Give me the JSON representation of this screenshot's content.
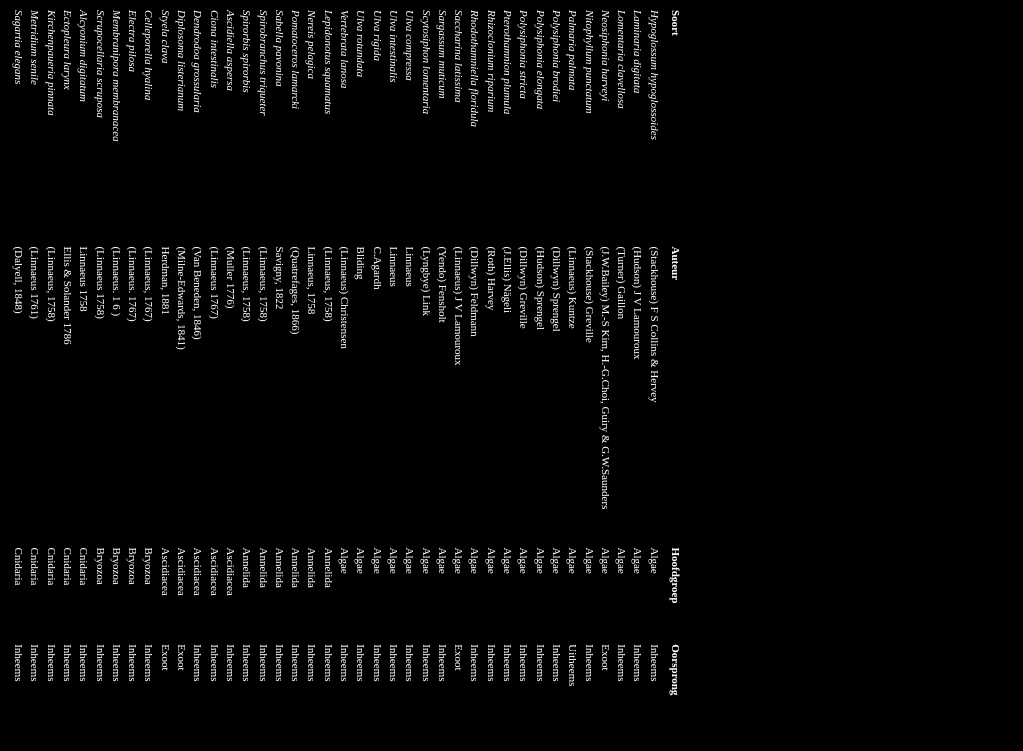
{
  "headers": {
    "soort": "Soort",
    "auteur": "Auteur",
    "hoofdgroep": "Hoofdgroep",
    "oorsprong": "Oorsprong"
  },
  "rows": [
    {
      "soort": "Hypoglossum hypoglossoides",
      "auteur": "(Stackhouse) F S Collins & Hervey",
      "hoofdgroep": "Algae",
      "oorsprong": "Inheems"
    },
    {
      "soort": "Laminaria digitata",
      "auteur": "(Hudson) J V Lamouroux",
      "hoofdgroep": "Algae",
      "oorsprong": "Inheems"
    },
    {
      "soort": "Lomentaria clavellosa",
      "auteur": "(Turner) Gaillon",
      "hoofdgroep": "Algae",
      "oorsprong": "Inheems"
    },
    {
      "soort": "Neosiphonia harveyi",
      "auteur": "(J.W.Bailey) M.-S Kim, H.-G.Choi, Guiry & G.W.Saunders",
      "hoofdgroep": "Algae",
      "oorsprong": "Exoot"
    },
    {
      "soort": "Nitophyllum punctatum",
      "auteur": "(Stackhouse) Greville",
      "hoofdgroep": "Algae",
      "oorsprong": "Inheems"
    },
    {
      "soort": "Palmaria palmata",
      "auteur": "(Linnaeus) Kuntze",
      "hoofdgroep": "Algae",
      "oorsprong": "Uitheems"
    },
    {
      "soort": "Polysiphonia brodiei",
      "auteur": "(Dillwyn) Sprengel",
      "hoofdgroep": "Algae",
      "oorsprong": "Inheems"
    },
    {
      "soort": "Polysiphonia elongata",
      "auteur": "(Hudson) Sprengel",
      "hoofdgroep": "Algae",
      "oorsprong": "Inheems"
    },
    {
      "soort": "Polysiphonia stricta",
      "auteur": "(Dillwyn) Greville",
      "hoofdgroep": "Algae",
      "oorsprong": "Inheems"
    },
    {
      "soort": "Pterothamnion plumula",
      "auteur": "(J.Ellis) Nägeli",
      "hoofdgroep": "Algae",
      "oorsprong": "Inheems"
    },
    {
      "soort": "Rhizoclonium riparium",
      "auteur": "(Roth) Harvey",
      "hoofdgroep": "Algae",
      "oorsprong": "Inheems"
    },
    {
      "soort": "Rhodothamniella floridula",
      "auteur": "(Dillwyn) Feldmann",
      "hoofdgroep": "Algae",
      "oorsprong": "Inheems"
    },
    {
      "soort": "Saccharina latissima",
      "auteur": "(Linnaeus) J V Lamouroux",
      "hoofdgroep": "Algae",
      "oorsprong": "Exoot"
    },
    {
      "soort": "Sargassum muticum",
      "auteur": "(Yendo) Fensholt",
      "hoofdgroep": "Algae",
      "oorsprong": "Inheems"
    },
    {
      "soort": "Scytosiphon lomentaria",
      "auteur": "(Lyngbye) Link",
      "hoofdgroep": "Algae",
      "oorsprong": "Inheems"
    },
    {
      "soort": "Ulva compressa",
      "auteur": "Linnaeus",
      "hoofdgroep": "Algae",
      "oorsprong": "Inheems"
    },
    {
      "soort": "Ulva intestinalis",
      "auteur": "Linnaeus",
      "hoofdgroep": "Algae",
      "oorsprong": "Inheems"
    },
    {
      "soort": "Ulva rigida",
      "auteur": "C.Agardh",
      "hoofdgroep": "Algae",
      "oorsprong": "Inheems"
    },
    {
      "soort": "Ulva rotundata",
      "auteur": "Bliding",
      "hoofdgroep": "Algae",
      "oorsprong": "Inheems"
    },
    {
      "soort": "Vertebrata lanosa",
      "auteur": "(Linnaeus) Christensen",
      "hoofdgroep": "Algae",
      "oorsprong": "Inheems"
    },
    {
      "soort": "Lepidonotus squamatus",
      "auteur": "(Linnaeus, 1758)",
      "hoofdgroep": "Annelida",
      "oorsprong": "Inheems"
    },
    {
      "soort": "Nereis pelagica",
      "auteur": "Linnaeus, 1758",
      "hoofdgroep": "Annelida",
      "oorsprong": "Inheems"
    },
    {
      "soort": "Pomatoceros lamarcki",
      "auteur": "(Quatrefages, 1866)",
      "hoofdgroep": "Annelida",
      "oorsprong": "Inheems"
    },
    {
      "soort": "Sabella pavonina",
      "auteur": "Savigny, 1822",
      "hoofdgroep": "Annelida",
      "oorsprong": "Inheems"
    },
    {
      "soort": "Spirobranchus triqueter",
      "auteur": "(Linnaeus, 1758)",
      "hoofdgroep": "Annelida",
      "oorsprong": "Inheems"
    },
    {
      "soort": "Spirorbis spirorbis",
      "auteur": "(Linnaeus, 1758)",
      "hoofdgroep": "Annelida",
      "oorsprong": "Inheems"
    },
    {
      "soort": "Ascidiella aspersa",
      "auteur": "(Muller 1776)",
      "hoofdgroep": "Ascidiacea",
      "oorsprong": "Inheems"
    },
    {
      "soort": "Ciona intestinalis",
      "auteur": "(Linnaeus 1767)",
      "hoofdgroep": "Ascidiacea",
      "oorsprong": "Inheems"
    },
    {
      "soort": "Dendrodoa grossularia",
      "auteur": "(Van Beneden, 1846)",
      "hoofdgroep": "Ascidiacea",
      "oorsprong": "Inheems"
    },
    {
      "soort": "Diplosoma listerianum",
      "auteur": "(Milne-Edwards, 1841)",
      "hoofdgroep": "Ascidiacea",
      "oorsprong": "Exoot"
    },
    {
      "soort": "Styela clava",
      "auteur": "Herdman, 1881",
      "hoofdgroep": "Ascidiacea",
      "oorsprong": "Exoot"
    },
    {
      "soort": "Celleporella hyalina",
      "auteur": "(Linnaeus, 1767)",
      "hoofdgroep": "Bryozoa",
      "oorsprong": "Inheems"
    },
    {
      "soort": "Electra pilosa",
      "auteur": "(Linnaeus. 1767)",
      "hoofdgroep": "Bryozoa",
      "oorsprong": "Inheems"
    },
    {
      "soort": "Membranipora membranacea",
      "auteur": "(Linnaeus. 1 6 )",
      "hoofdgroep": "Bryozoa",
      "oorsprong": "Inheems"
    },
    {
      "soort": "Scrupocellaria scruposa",
      "auteur": "(Linnaeus 1758)",
      "hoofdgroep": "Bryozoa",
      "oorsprong": "Inheems"
    },
    {
      "soort": "Alcyonium digitatum",
      "auteur": "Linnaeus 1758",
      "hoofdgroep": "Cnidaria",
      "oorsprong": "Inheems"
    },
    {
      "soort": "Ectopleura larynx",
      "auteur": "Ellis & Solander 1786",
      "hoofdgroep": "Cnidaria",
      "oorsprong": "Inheems"
    },
    {
      "soort": "Kirchenpaueria pinnata",
      "auteur": "(Linnaeus, 1758)",
      "hoofdgroep": "Cnidaria",
      "oorsprong": "Inheems"
    },
    {
      "soort": "Metridium senile",
      "auteur": "(Linnaeus 1761)",
      "hoofdgroep": "Cnidaria",
      "oorsprong": "Inheems"
    },
    {
      "soort": "Sagartia elegans",
      "auteur": "(Dalyell, 1848)",
      "hoofdgroep": "Cnidaria",
      "oorsprong": "Inheems"
    }
  ]
}
